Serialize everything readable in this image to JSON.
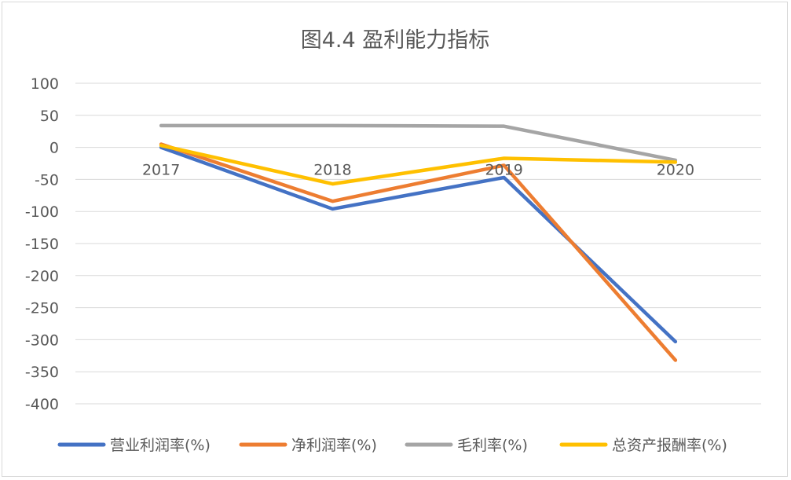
{
  "chart_data": {
    "type": "line",
    "title": "图4.4 盈利能力指标",
    "categories": [
      "2017",
      "2018",
      "2019",
      "2020"
    ],
    "ylim": [
      -400,
      100
    ],
    "yticks": [
      "100",
      "50",
      "0",
      "-50",
      "-100",
      "-150",
      "-200",
      "-250",
      "-300",
      "-350",
      "-400"
    ],
    "ytick_values": [
      100,
      50,
      0,
      -50,
      -100,
      -150,
      -200,
      -250,
      -300,
      -350,
      -400
    ],
    "grid": true,
    "legend_position": "bottom",
    "series": [
      {
        "name": "营业利润率(%)",
        "color": "#4472C4",
        "values": [
          0,
          -96,
          -47,
          -303
        ]
      },
      {
        "name": "净利润率(%)",
        "color": "#ED7D31",
        "values": [
          5,
          -84,
          -28,
          -332
        ]
      },
      {
        "name": "毛利率(%)",
        "color": "#A5A5A5",
        "values": [
          34,
          34,
          33,
          -20
        ]
      },
      {
        "name": "总资产报酬率(%)",
        "color": "#FFC000",
        "values": [
          3,
          -57,
          -17,
          -23
        ]
      }
    ]
  }
}
